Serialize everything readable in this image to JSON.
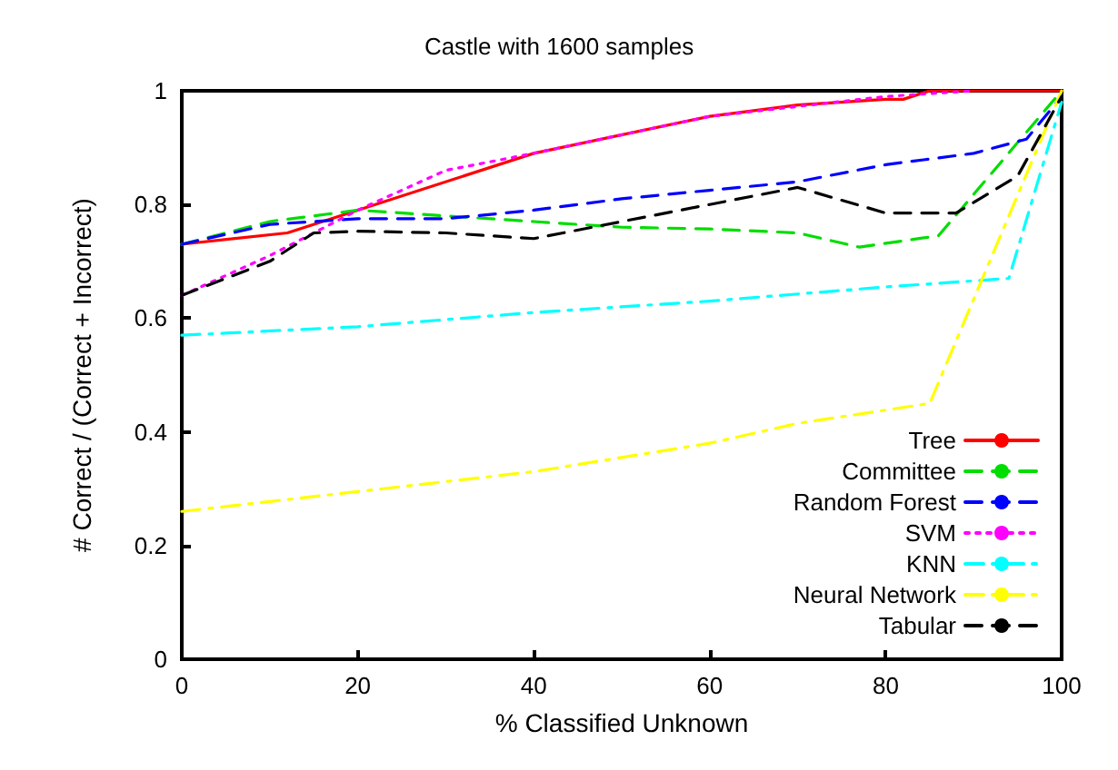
{
  "chart_data": {
    "type": "line",
    "title": "Castle with 1600 samples",
    "xlabel": "% Classified Unknown",
    "ylabel": "# Correct / (Correct + Incorrect)",
    "xlim": [
      0,
      100
    ],
    "xticks": [
      0,
      20,
      40,
      60,
      80,
      100
    ],
    "ylim": [
      0,
      1
    ],
    "yticks": [
      0,
      0.2,
      0.4,
      0.6,
      0.8,
      1
    ],
    "grid": false,
    "legend": "bottom right",
    "marker": "none",
    "series": [
      {
        "name": "Tree",
        "color": "#ff0000",
        "line_style": "solid",
        "x": [
          0,
          12,
          20,
          40,
          60,
          70,
          80,
          82,
          85,
          100
        ],
        "values": [
          0.73,
          0.75,
          0.79,
          0.89,
          0.955,
          0.975,
          0.985,
          0.985,
          1.0,
          1.0
        ]
      },
      {
        "name": "Committee",
        "color": "#00dd00",
        "line_style": "dashed",
        "x": [
          0,
          10,
          20,
          30,
          40,
          50,
          60,
          70,
          77,
          86,
          100
        ],
        "values": [
          0.73,
          0.77,
          0.79,
          0.78,
          0.77,
          0.76,
          0.757,
          0.75,
          0.725,
          0.745,
          1.0
        ]
      },
      {
        "name": "Random Forest",
        "color": "#0000ff",
        "line_style": "dashed",
        "x": [
          0,
          10,
          20,
          30,
          40,
          50,
          60,
          70,
          80,
          90,
          96,
          100
        ],
        "values": [
          0.73,
          0.765,
          0.775,
          0.775,
          0.79,
          0.81,
          0.825,
          0.84,
          0.87,
          0.89,
          0.915,
          0.99
        ]
      },
      {
        "name": "SVM",
        "color": "#ff00ff",
        "line_style": "dotted",
        "x": [
          0,
          10,
          20,
          30,
          40,
          60,
          80,
          90
        ],
        "values": [
          0.64,
          0.71,
          0.79,
          0.86,
          0.89,
          0.955,
          0.99,
          1.0
        ]
      },
      {
        "name": "KNN",
        "color": "#00ffff",
        "line_style": "dashdot",
        "x": [
          0,
          20,
          40,
          60,
          80,
          94,
          100
        ],
        "values": [
          0.57,
          0.585,
          0.61,
          0.63,
          0.655,
          0.67,
          0.98
        ]
      },
      {
        "name": "Neural Network",
        "color": "#ffff00",
        "line_style": "dashdot",
        "x": [
          0,
          20,
          40,
          60,
          70,
          85,
          100
        ],
        "values": [
          0.26,
          0.295,
          0.33,
          0.38,
          0.415,
          0.45,
          1.0
        ]
      },
      {
        "name": "Tabular",
        "color": "#000000",
        "line_style": "dashed",
        "x": [
          0,
          10,
          15,
          20,
          30,
          40,
          50,
          60,
          70,
          80,
          88,
          95,
          100
        ],
        "values": [
          0.64,
          0.7,
          0.75,
          0.753,
          0.75,
          0.74,
          0.77,
          0.8,
          0.83,
          0.785,
          0.785,
          0.85,
          0.99
        ]
      }
    ]
  }
}
